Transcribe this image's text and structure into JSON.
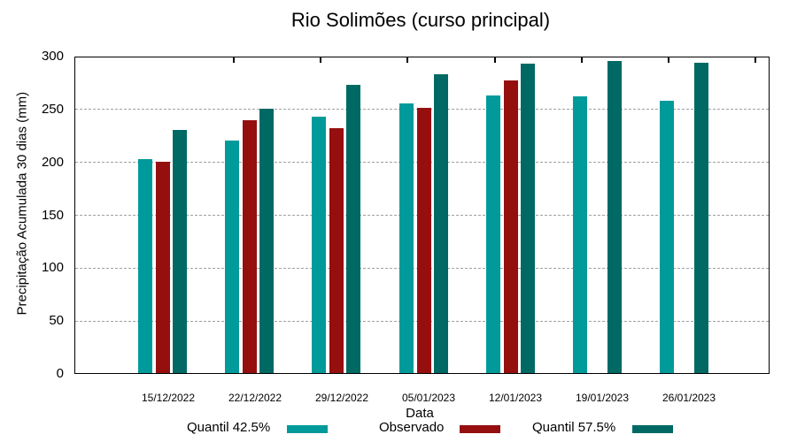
{
  "chart_data": {
    "type": "bar",
    "title": "Rio Solimões (curso principal)",
    "xlabel": "Data",
    "ylabel": "Precipitação Acumulada 30 dias (mm)",
    "ylim": [
      0,
      300
    ],
    "yticks": [
      0,
      50,
      100,
      150,
      200,
      250,
      300
    ],
    "grid": true,
    "legend_position": "bottom",
    "categories": [
      "15/12/2022",
      "22/12/2022",
      "29/12/2022",
      "05/01/2023",
      "12/01/2023",
      "19/01/2023",
      "26/01/2023"
    ],
    "series": [
      {
        "name": "Quantil 42.5%",
        "color": "#009a9a",
        "values": [
          203,
          220,
          243,
          255,
          263,
          262,
          258
        ]
      },
      {
        "name": "Observado",
        "color": "#960f0f",
        "values": [
          200,
          239,
          232,
          251,
          277,
          null,
          null
        ]
      },
      {
        "name": "Quantil 57.5%",
        "color": "#006964",
        "values": [
          230,
          250,
          273,
          283,
          293,
          295,
          294
        ]
      }
    ]
  },
  "labels": {
    "title": "Rio Solimões (curso principal)",
    "xlabel": "Data",
    "ylabel": "Precipitação Acumulada 30 dias (mm)",
    "yticks": [
      "0",
      "50",
      "100",
      "150",
      "200",
      "250",
      "300"
    ],
    "xticks": [
      "15/12/2022",
      "22/12/2022",
      "29/12/2022",
      "05/01/2023",
      "12/01/2023",
      "19/01/2023",
      "26/01/2023"
    ],
    "legend": [
      "Quantil 42.5%",
      "Observado",
      "Quantil 57.5%"
    ]
  }
}
